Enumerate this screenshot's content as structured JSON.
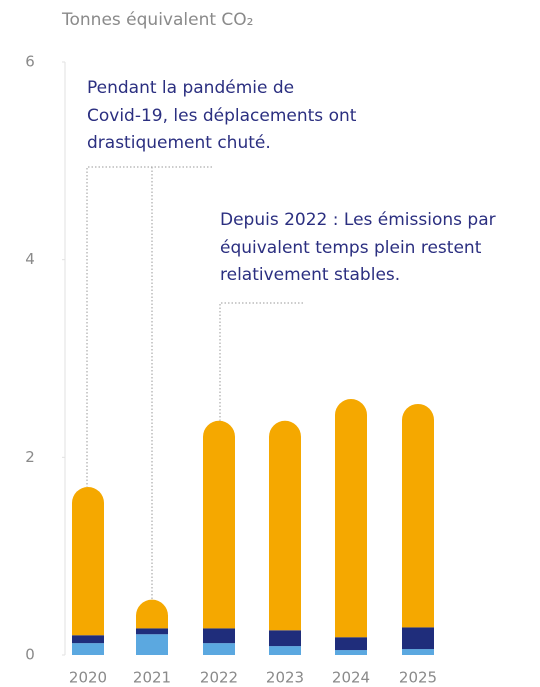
{
  "chart_data": {
    "type": "stacked-bar",
    "y_axis_label": "Tonnes équivalent CO₂",
    "categories": [
      "2020",
      "2021",
      "2022",
      "2023",
      "2024",
      "2025"
    ],
    "series": [
      {
        "color": "#5ba8e0",
        "values": [
          0.12,
          0.21,
          0.12,
          0.09,
          0.05,
          0.06
        ]
      },
      {
        "color": "#1f2d7b",
        "values": [
          0.08,
          0.06,
          0.15,
          0.16,
          0.13,
          0.22
        ]
      },
      {
        "color": "#f5a800",
        "values": [
          1.5,
          0.29,
          2.1,
          2.12,
          2.41,
          2.26
        ]
      }
    ],
    "ylim": [
      0,
      6
    ],
    "yticks": [
      0,
      2,
      4,
      6
    ],
    "annotations": [
      {
        "lines": [
          "Pendant la pandémie de",
          "Covid-19, les déplacements ont",
          "drastiquement chuté."
        ]
      },
      {
        "lines": [
          "Depuis 2022 : Les émissions par",
          "équivalent temps plein restent",
          "relativement stables."
        ]
      }
    ]
  }
}
